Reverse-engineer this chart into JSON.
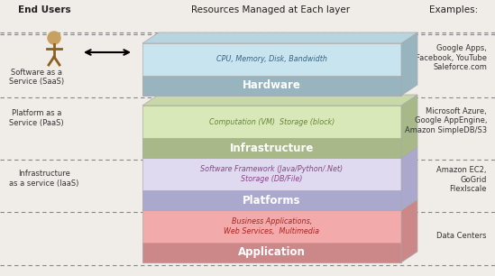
{
  "title": "Resources Managed at Each layer",
  "examples_title": "Examples:",
  "bg_color": "#f0ede8",
  "layers": [
    {
      "name": "Application",
      "resource_text": "Business Applications,\nWeb Services,  Multimedia",
      "face_color": "#f2aaaa",
      "top_color": "#e89898",
      "side_color": "#cc8888",
      "text_color": "#aa2222",
      "label_color": "#cc3333",
      "examples": "Google Apps,\nFacebook, YouTube\nSaleforce.com",
      "service_label": "Software as a\nService (SaaS)"
    },
    {
      "name": "Platforms",
      "resource_text": "Software Framework (Java/Python/.Net)\nStorage (DB/File)",
      "face_color": "#e0daf0",
      "top_color": "#ccc8e0",
      "side_color": "#aaa8cc",
      "text_color": "#884488",
      "label_color": "#666688",
      "examples": "Microsoft Azure,\nGoogle AppEngine,\nAmazon SimpleDB/S3",
      "service_label": "Platform as a\nService (PaaS)"
    },
    {
      "name": "Infrastructure",
      "resource_text": "Computation (VM)  Storage (block)",
      "face_color": "#d8e8b8",
      "top_color": "#c8d8a8",
      "side_color": "#a8b888",
      "text_color": "#668833",
      "label_color": "#557722",
      "examples": "Amazon EC2,\nGoGrid\nFlexlscale",
      "service_label": "Infrastructure\nas a service (IaaS)"
    },
    {
      "name": "Hardware",
      "resource_text": "CPU, Memory, Disk, Bandwidth",
      "face_color": "#c8e4ee",
      "top_color": "#b8d4de",
      "side_color": "#98b4be",
      "text_color": "#336688",
      "label_color": "#335577",
      "examples": "Data Centers",
      "service_label": ""
    }
  ]
}
